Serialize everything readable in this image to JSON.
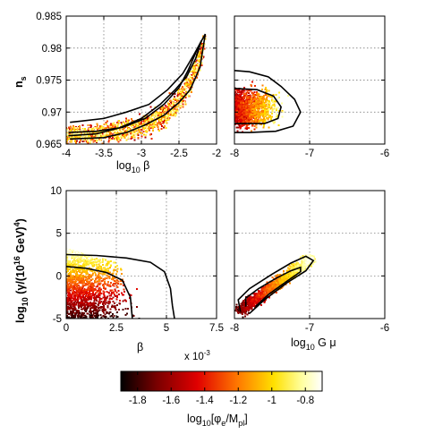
{
  "chart_data": [
    {
      "type": "scatter",
      "id": "tl",
      "xlabel": "log10 β",
      "ylabel": "n_s",
      "xlim": [
        -4,
        -2
      ],
      "ylim": [
        0.965,
        0.985
      ],
      "x_ticks": [
        -4,
        -3.5,
        -3,
        -2.5,
        -2
      ],
      "x_tick_labels": [
        "-4",
        "-3.5",
        "-3",
        "-2.5",
        "-2"
      ],
      "y_ticks": [
        0.965,
        0.97,
        0.975,
        0.98,
        0.985
      ],
      "y_tick_labels": [
        "0.965",
        "0.97",
        "0.975",
        "0.98",
        "0.985"
      ],
      "grid": true,
      "contours": [
        [
          [
            -3.97,
            0.9663
          ],
          [
            -3.6,
            0.9666
          ],
          [
            -3.3,
            0.9675
          ],
          [
            -3.0,
            0.969
          ],
          [
            -2.75,
            0.9712
          ],
          [
            -2.55,
            0.9735
          ],
          [
            -2.4,
            0.9755
          ],
          [
            -2.28,
            0.9783
          ],
          [
            -2.2,
            0.9812
          ],
          [
            -2.25,
            0.98
          ],
          [
            -2.38,
            0.9765
          ],
          [
            -2.5,
            0.9738
          ],
          [
            -2.7,
            0.9712
          ],
          [
            -2.95,
            0.969
          ],
          [
            -3.25,
            0.9676
          ],
          [
            -3.6,
            0.967
          ],
          [
            -3.97,
            0.9668
          ]
        ],
        [
          [
            -3.95,
            0.9658
          ],
          [
            -3.5,
            0.966
          ],
          [
            -3.2,
            0.9668
          ],
          [
            -2.95,
            0.968
          ],
          [
            -2.7,
            0.9695
          ],
          [
            -2.5,
            0.9715
          ],
          [
            -2.35,
            0.9735
          ],
          [
            -2.22,
            0.977
          ],
          [
            -2.15,
            0.9822
          ],
          [
            -2.3,
            0.979
          ],
          [
            -2.45,
            0.976
          ],
          [
            -2.65,
            0.9735
          ],
          [
            -2.9,
            0.9712
          ],
          [
            -3.2,
            0.97
          ],
          [
            -3.5,
            0.969
          ],
          [
            -3.8,
            0.9686
          ],
          [
            -3.95,
            0.9684
          ]
        ]
      ],
      "scatter": {
        "x_range": [
          -4,
          -2.15
        ],
        "band_y": "n_s increasing with log10 β",
        "color_range": [
          -1.9,
          -0.7
        ]
      }
    },
    {
      "type": "scatter",
      "id": "tr",
      "xlabel": "",
      "ylabel": "",
      "xlim": [
        -8,
        -6
      ],
      "ylim": [
        0.965,
        0.985
      ],
      "x_ticks": [
        -8,
        -7,
        -6
      ],
      "x_tick_labels": [
        "-8",
        "-7",
        "-6"
      ],
      "y_ticks": [
        0.965,
        0.97,
        0.975,
        0.98,
        0.985
      ],
      "grid": true,
      "contours": [
        [
          [
            -8,
            0.9765
          ],
          [
            -7.8,
            0.9763
          ],
          [
            -7.55,
            0.9755
          ],
          [
            -7.38,
            0.974
          ],
          [
            -7.2,
            0.972
          ],
          [
            -7.12,
            0.97
          ],
          [
            -7.22,
            0.9678
          ],
          [
            -7.45,
            0.967
          ],
          [
            -7.8,
            0.9668
          ],
          [
            -8,
            0.9668
          ]
        ],
        [
          [
            -8,
            0.9737
          ],
          [
            -7.7,
            0.9735
          ],
          [
            -7.48,
            0.9725
          ],
          [
            -7.38,
            0.9708
          ],
          [
            -7.42,
            0.969
          ],
          [
            -7.6,
            0.9682
          ],
          [
            -8,
            0.9682
          ]
        ]
      ],
      "scatter": {
        "x_range": [
          -8,
          -7.1
        ],
        "color_range": [
          -1.9,
          -0.7
        ]
      }
    },
    {
      "type": "scatter",
      "id": "bl",
      "xlabel": "β",
      "x_multiplier": "x 10",
      "x_multiplier_exp": "-3",
      "ylabel": "log10 (γ/(10^16 GeV)^4)",
      "xlim": [
        0,
        0.0075
      ],
      "ylim": [
        -5,
        10
      ],
      "x_ticks": [
        0,
        0.0025,
        0.005,
        0.0075
      ],
      "x_tick_labels": [
        "0",
        "2.5",
        "5",
        "7.5"
      ],
      "y_ticks": [
        -5,
        0,
        5,
        10
      ],
      "y_tick_labels": [
        "-5",
        "0",
        "5",
        "10"
      ],
      "grid": true,
      "contours": [
        [
          [
            0,
            2.5
          ],
          [
            0.0015,
            2.4
          ],
          [
            0.003,
            2.1
          ],
          [
            0.0042,
            1.6
          ],
          [
            0.0049,
            0.5
          ],
          [
            0.0052,
            -1.5
          ],
          [
            0.0053,
            -3.5
          ],
          [
            0.0054,
            -5
          ]
        ],
        [
          [
            0,
            1.1
          ],
          [
            0.001,
            0.9
          ],
          [
            0.002,
            0.4
          ],
          [
            0.0028,
            -0.5
          ],
          [
            0.0032,
            -2.5
          ],
          [
            0.0033,
            -5
          ]
        ]
      ],
      "scatter": {
        "x_range": [
          0,
          0.0061
        ],
        "y_range": [
          -5,
          3.2
        ],
        "color_range": [
          -1.9,
          -0.7
        ]
      }
    },
    {
      "type": "scatter",
      "id": "br",
      "xlabel": "log10 G μ",
      "ylabel": "",
      "xlim": [
        -8,
        -6
      ],
      "ylim": [
        -5,
        10
      ],
      "x_ticks": [
        -8,
        -7,
        -6
      ],
      "x_tick_labels": [
        "-8",
        "-7",
        "-6"
      ],
      "y_ticks": [
        -5,
        0,
        5,
        10
      ],
      "grid": true,
      "contours": [
        [
          [
            -7.92,
            -4.2
          ],
          [
            -7.95,
            -2.8
          ],
          [
            -7.8,
            -1.5
          ],
          [
            -7.5,
            0.2
          ],
          [
            -7.25,
            1.5
          ],
          [
            -7.05,
            2.3
          ],
          [
            -6.95,
            1.8
          ],
          [
            -7.05,
            0.6
          ],
          [
            -7.3,
            -0.8
          ],
          [
            -7.6,
            -2.8
          ],
          [
            -7.8,
            -4.4
          ]
        ],
        [
          [
            -7.85,
            -3.6
          ],
          [
            -7.85,
            -2.6
          ],
          [
            -7.68,
            -1.5
          ],
          [
            -7.45,
            -0.3
          ],
          [
            -7.25,
            0.6
          ],
          [
            -7.12,
            1.0
          ],
          [
            -7.12,
            0.5
          ],
          [
            -7.3,
            -0.6
          ],
          [
            -7.55,
            -2.2
          ],
          [
            -7.72,
            -3.6
          ]
        ]
      ],
      "scatter": {
        "x_range": [
          -8,
          -6.98
        ],
        "color_range": [
          -1.9,
          -0.7
        ]
      }
    }
  ],
  "colorbar": {
    "type": "colorbar",
    "range": [
      -1.9,
      -0.7
    ],
    "ticks": [
      -1.8,
      -1.6,
      -1.4,
      -1.2,
      -1,
      -0.8
    ],
    "tick_labels": [
      "-1.8",
      "-1.6",
      "-1.4",
      "-1.2",
      "-1",
      "-0.8"
    ],
    "label": "log10[φe/Mpl]",
    "colormap": [
      "#000000",
      "#7a0000",
      "#e00000",
      "#ff7800",
      "#ffe000",
      "#ffffa0",
      "#ffffff"
    ]
  },
  "labels": {
    "tl_xlabel_pre": "log",
    "tl_xlabel_sub": "10",
    "tl_xlabel_post": " β",
    "tl_ylabel_main": "n",
    "tl_ylabel_sub": "s",
    "bl_ylabel_a": "log",
    "bl_ylabel_b": "10",
    "bl_ylabel_c": " (γ/(10",
    "bl_ylabel_d": "16",
    "bl_ylabel_e": " GeV)",
    "bl_ylabel_f": "4",
    "bl_ylabel_g": ")",
    "bl_xlabel": "β",
    "bl_mult": "x 10",
    "bl_mult_exp": "-3",
    "br_xlabel_pre": "log",
    "br_xlabel_sub": "10",
    "br_xlabel_post": " G μ",
    "cb_label_a": "log",
    "cb_label_b": "10",
    "cb_label_c": "[φ",
    "cb_label_d": "e",
    "cb_label_e": "/M",
    "cb_label_f": "pl",
    "cb_label_g": "]"
  }
}
